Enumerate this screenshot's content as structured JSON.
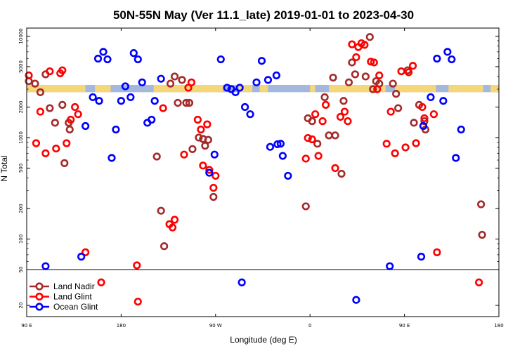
{
  "chart_data": {
    "type": "scatter",
    "title": "50N-55N May (Ver 11.1_late)   2019-01-01 to 2023-04-30",
    "xlabel": "Longitude (deg E)",
    "ylabel": "N Total",
    "x_ticks": [
      {
        "value": 90,
        "label": "90 E"
      },
      {
        "value": 180,
        "label": "180"
      },
      {
        "value": 270,
        "label": "90 W"
      },
      {
        "value": 360,
        "label": "0"
      },
      {
        "value": 450,
        "label": "90 E"
      },
      {
        "value": 540,
        "label": "180"
      }
    ],
    "xlim": [
      90,
      540
    ],
    "ylim_main": [
      50,
      12000
    ],
    "y_ticks_main": [
      "50",
      "100",
      "200",
      "500",
      "1000",
      "2000",
      "5000",
      "10000"
    ],
    "y_ticks_main_values": [
      50,
      100,
      200,
      500,
      1000,
      2000,
      5000,
      10000
    ],
    "ylim_lower": [
      15,
      50
    ],
    "y_ticks_lower": [
      "20"
    ],
    "y_ticks_lower_values": [
      20
    ],
    "land_mask_band": {
      "y_low": 2800,
      "y_high": 3300,
      "land_color": "#F5D77A",
      "ocean_color": "#A3B8DC"
    },
    "land_spans": [
      [
        90,
        146
      ],
      [
        155,
        170
      ],
      [
        211,
        277
      ],
      [
        292,
        305
      ],
      [
        312,
        320
      ],
      [
        360,
        365
      ],
      [
        378,
        432
      ],
      [
        441,
        480
      ],
      [
        492,
        525
      ],
      [
        532,
        540
      ]
    ],
    "legend": {
      "position": "lower-left",
      "entries": [
        {
          "name": "Land Nadir",
          "color": "#A52A2A"
        },
        {
          "name": "Land Glint",
          "color": "#FF0000"
        },
        {
          "name": "Ocean Glint",
          "color": "#0000FF"
        }
      ]
    },
    "series": [
      {
        "name": "Land Nadir",
        "color": "#A52A2A",
        "points": [
          [
            92,
            3600
          ],
          [
            98,
            3400
          ],
          [
            103,
            2800
          ],
          [
            108,
            4200
          ],
          [
            112,
            1950
          ],
          [
            117,
            1400
          ],
          [
            124,
            2100
          ],
          [
            126,
            560
          ],
          [
            130,
            1400
          ],
          [
            131,
            1200
          ],
          [
            214,
            650
          ],
          [
            218,
            190
          ],
          [
            221,
            85
          ],
          [
            227,
            3400
          ],
          [
            231,
            4000
          ],
          [
            234,
            2200
          ],
          [
            238,
            3700
          ],
          [
            242,
            2200
          ],
          [
            245,
            2200
          ],
          [
            248,
            770
          ],
          [
            254,
            1000
          ],
          [
            258,
            970
          ],
          [
            260,
            830
          ],
          [
            263,
            950
          ],
          [
            268,
            260
          ],
          [
            356,
            210
          ],
          [
            358,
            1550
          ],
          [
            362,
            1450
          ],
          [
            367,
            870
          ],
          [
            374,
            2500
          ],
          [
            378,
            1050
          ],
          [
            382,
            3900
          ],
          [
            384,
            1050
          ],
          [
            390,
            440
          ],
          [
            392,
            2300
          ],
          [
            397,
            3500
          ],
          [
            400,
            5500
          ],
          [
            403,
            4200
          ],
          [
            413,
            4000
          ],
          [
            417,
            9800
          ],
          [
            420,
            3000
          ],
          [
            423,
            3600
          ],
          [
            426,
            3400
          ],
          [
            439,
            3400
          ],
          [
            442,
            2700
          ],
          [
            444,
            1950
          ],
          [
            453,
            4600
          ],
          [
            459,
            1400
          ],
          [
            464,
            2100
          ],
          [
            469,
            1450
          ],
          [
            470,
            1200
          ],
          [
            523,
            220
          ],
          [
            524,
            110
          ]
        ]
      },
      {
        "name": "Land Glint",
        "color": "#FF0000",
        "points": [
          [
            92,
            4100
          ],
          [
            99,
            880
          ],
          [
            103,
            1800
          ],
          [
            108,
            700
          ],
          [
            112,
            4500
          ],
          [
            118,
            780
          ],
          [
            122,
            4300
          ],
          [
            124,
            4600
          ],
          [
            128,
            880
          ],
          [
            132,
            1500
          ],
          [
            136,
            2000
          ],
          [
            139,
            1700
          ],
          [
            146,
            74
          ],
          [
            195,
            55
          ],
          [
            220,
            1950
          ],
          [
            226,
            140
          ],
          [
            229,
            130
          ],
          [
            231,
            155
          ],
          [
            240,
            680
          ],
          [
            244,
            3100
          ],
          [
            247,
            3500
          ],
          [
            253,
            1500
          ],
          [
            256,
            1200
          ],
          [
            258,
            530
          ],
          [
            262,
            1350
          ],
          [
            264,
            480
          ],
          [
            268,
            320
          ],
          [
            270,
            420
          ],
          [
            356,
            620
          ],
          [
            358,
            990
          ],
          [
            362,
            960
          ],
          [
            365,
            1700
          ],
          [
            368,
            660
          ],
          [
            372,
            1450
          ],
          [
            375,
            2100
          ],
          [
            384,
            500
          ],
          [
            389,
            1600
          ],
          [
            393,
            1800
          ],
          [
            396,
            1450
          ],
          [
            400,
            8300
          ],
          [
            404,
            6200
          ],
          [
            406,
            7800
          ],
          [
            409,
            8500
          ],
          [
            412,
            8200
          ],
          [
            418,
            5600
          ],
          [
            421,
            5500
          ],
          [
            424,
            3000
          ],
          [
            426,
            4100
          ],
          [
            433,
            870
          ],
          [
            437,
            1800
          ],
          [
            441,
            700
          ],
          [
            447,
            4500
          ],
          [
            451,
            800
          ],
          [
            454,
            4400
          ],
          [
            458,
            5100
          ],
          [
            461,
            880
          ],
          [
            467,
            2000
          ],
          [
            469,
            1550
          ],
          [
            478,
            1700
          ],
          [
            481,
            74
          ]
        ]
      },
      {
        "name": "Ocean Glint",
        "color": "#0000FF",
        "points": [
          [
            108,
            54
          ],
          [
            142,
            67
          ],
          [
            146,
            1300
          ],
          [
            153,
            2500
          ],
          [
            158,
            6000
          ],
          [
            159,
            2300
          ],
          [
            163,
            7000
          ],
          [
            167,
            5900
          ],
          [
            171,
            630
          ],
          [
            175,
            1200
          ],
          [
            180,
            2300
          ],
          [
            184,
            3200
          ],
          [
            189,
            2500
          ],
          [
            192,
            6800
          ],
          [
            196,
            5900
          ],
          [
            200,
            3500
          ],
          [
            205,
            1400
          ],
          [
            209,
            1500
          ],
          [
            212,
            2300
          ],
          [
            218,
            3800
          ],
          [
            264,
            450
          ],
          [
            269,
            680
          ],
          [
            275,
            5900
          ],
          [
            281,
            3100
          ],
          [
            285,
            3000
          ],
          [
            289,
            2800
          ],
          [
            293,
            3100
          ],
          [
            298,
            2000
          ],
          [
            303,
            1700
          ],
          [
            309,
            3500
          ],
          [
            314,
            5700
          ],
          [
            320,
            3700
          ],
          [
            322,
            810
          ],
          [
            328,
            4100
          ],
          [
            329,
            860
          ],
          [
            332,
            870
          ],
          [
            334,
            660
          ],
          [
            339,
            420
          ],
          [
            436,
            54
          ],
          [
            466,
            67
          ],
          [
            468,
            1300
          ],
          [
            475,
            2500
          ],
          [
            481,
            6000
          ],
          [
            487,
            2300
          ],
          [
            491,
            7000
          ],
          [
            495,
            5900
          ],
          [
            499,
            630
          ],
          [
            504,
            1200
          ]
        ]
      }
    ],
    "lower_panel_points": [
      {
        "series": "Land Glint",
        "color": "#FF0000",
        "x": 161,
        "y": 36
      },
      {
        "series": "Land Glint",
        "color": "#FF0000",
        "x": 196,
        "y": 22
      },
      {
        "series": "Land Glint",
        "color": "#FF0000",
        "x": 521,
        "y": 36
      },
      {
        "series": "Ocean Glint",
        "color": "#0000FF",
        "x": 295,
        "y": 36
      },
      {
        "series": "Ocean Glint",
        "color": "#0000FF",
        "x": 404,
        "y": 23
      }
    ]
  }
}
